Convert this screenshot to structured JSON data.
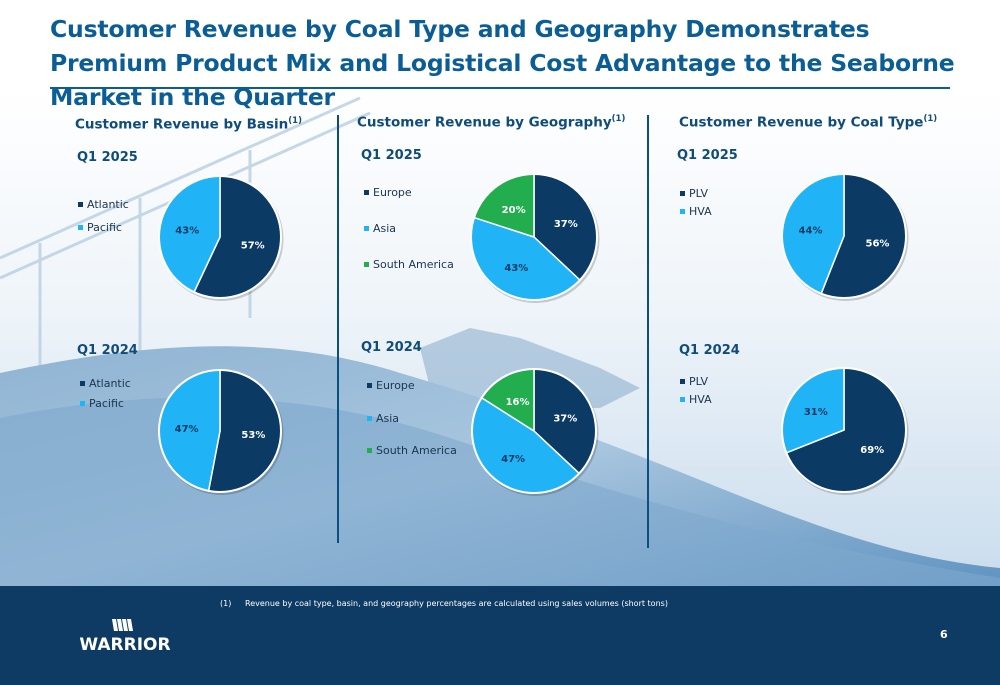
{
  "title": "Customer Revenue by Coal Type and Geography Demonstrates Premium Product Mix and Logistical Cost Advantage to the Seaborne Market in the Quarter",
  "colors": {
    "dark_navy": "#0b3a64",
    "light_blue": "#20b4f7",
    "green": "#22ad4f",
    "title_blue": "#0b5e95",
    "footer_navy": "#0d3b64"
  },
  "sections": [
    {
      "title": "Customer Revenue by Basin",
      "superscript": "(1)"
    },
    {
      "title": "Customer Revenue by Geography",
      "superscript": "(1)"
    },
    {
      "title": "Customer Revenue by Coal Type",
      "superscript": "(1)"
    }
  ],
  "chart_data": [
    {
      "type": "pie",
      "section": "Customer Revenue by Basin",
      "period": "Q1 2025",
      "labels": [
        "Atlantic",
        "Pacific"
      ],
      "values": [
        57,
        43
      ],
      "data_labels": [
        "57%",
        "43%"
      ],
      "colors": [
        "#0b3a64",
        "#20b4f7"
      ],
      "legend": "left"
    },
    {
      "type": "pie",
      "section": "Customer Revenue by Basin",
      "period": "Q1 2024",
      "labels": [
        "Atlantic",
        "Pacific"
      ],
      "values": [
        53,
        47
      ],
      "data_labels": [
        "53%",
        "47%"
      ],
      "colors": [
        "#0b3a64",
        "#20b4f7"
      ],
      "legend": "left"
    },
    {
      "type": "pie",
      "section": "Customer Revenue by Geography",
      "period": "Q1 2025",
      "labels": [
        "Europe",
        "Asia",
        "South America"
      ],
      "values": [
        37,
        43,
        20
      ],
      "data_labels": [
        "37%",
        "43%",
        "20%"
      ],
      "colors": [
        "#0b3a64",
        "#20b4f7",
        "#22ad4f"
      ],
      "legend": "left"
    },
    {
      "type": "pie",
      "section": "Customer Revenue by Geography",
      "period": "Q1 2024",
      "labels": [
        "Europe",
        "Asia",
        "South America"
      ],
      "values": [
        37,
        47,
        16
      ],
      "data_labels": [
        "37%",
        "47%",
        "16%"
      ],
      "colors": [
        "#0b3a64",
        "#20b4f7",
        "#22ad4f"
      ],
      "legend": "left"
    },
    {
      "type": "pie",
      "section": "Customer Revenue by Coal Type",
      "period": "Q1 2025",
      "labels": [
        "PLV",
        "HVA"
      ],
      "values": [
        56,
        44
      ],
      "data_labels": [
        "56%",
        "44%"
      ],
      "colors": [
        "#0b3a64",
        "#20b4f7"
      ],
      "legend": "top-left"
    },
    {
      "type": "pie",
      "section": "Customer Revenue by Coal Type",
      "period": "Q1 2024",
      "labels": [
        "PLV",
        "HVA"
      ],
      "values": [
        69,
        31
      ],
      "data_labels": [
        "69%",
        "31%"
      ],
      "colors": [
        "#0b3a64",
        "#20b4f7"
      ],
      "legend": "top-left"
    }
  ],
  "footer": {
    "footnote_number": "(1)",
    "footnote": "Revenue by coal type, basin, and geography percentages are calculated using sales volumes (short tons)",
    "page_number": "6",
    "logo_text": "WARRIOR"
  }
}
